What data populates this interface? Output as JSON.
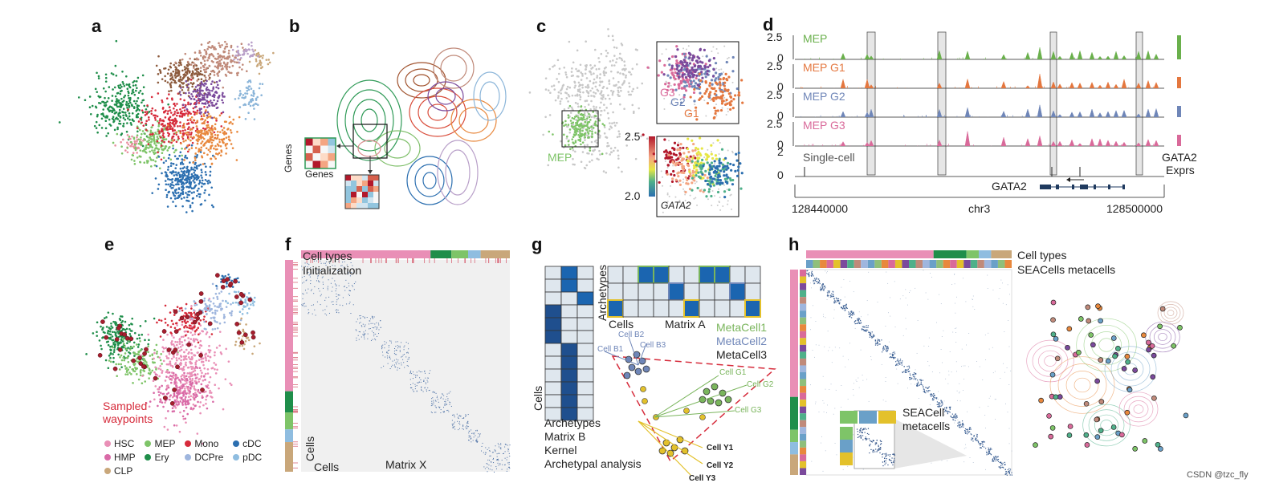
{
  "letters": {
    "a": "a",
    "b": "b",
    "c": "c",
    "d": "d",
    "e": "e",
    "f": "f",
    "g": "g",
    "h": "h"
  },
  "panel_b": {
    "genes_y": "Genes",
    "genes_x": "Genes"
  },
  "panel_c": {
    "mep": "MEP",
    "g3": "G3",
    "g2": "G2",
    "g1": "G1",
    "scale_max": "2.5",
    "scale_min": "2.0",
    "gene": "GATA2"
  },
  "panel_d": {
    "tracks": [
      {
        "label": "MEP",
        "color": "#6ab04c",
        "tmax": "2.5",
        "tmin": "0"
      },
      {
        "label": "MEP G1",
        "color": "#e4773f",
        "tmax": "2.5",
        "tmin": "0"
      },
      {
        "label": "MEP G2",
        "color": "#6f86b8",
        "tmax": "2.5",
        "tmin": "0"
      },
      {
        "label": "MEP G3",
        "color": "#d96a9a",
        "tmax": "2.5",
        "tmin": "0"
      }
    ],
    "single_label": "Single-cell",
    "single_max": "2",
    "single_min": "0",
    "expr_label1": "GATA2",
    "expr_label2": "Exprs",
    "gene": "GATA2",
    "x_start": "128440000",
    "x_chr": "chr3",
    "x_end": "128500000"
  },
  "panel_e": {
    "sampled1": "Sampled",
    "sampled2": "waypoints",
    "legend": [
      {
        "name": "HSC",
        "color": "#e98fb6"
      },
      {
        "name": "MEP",
        "color": "#7ec468"
      },
      {
        "name": "Mono",
        "color": "#d62b3b"
      },
      {
        "name": "cDC",
        "color": "#2c6fb0"
      },
      {
        "name": "HMP",
        "color": "#d96aa7"
      },
      {
        "name": "Ery",
        "color": "#1f8e4a"
      },
      {
        "name": "DCPre",
        "color": "#9fb6de"
      },
      {
        "name": "pDC",
        "color": "#8fbde0"
      },
      {
        "name": "CLP",
        "color": "#c9a77a"
      }
    ]
  },
  "panel_f": {
    "cell_types": "Cell types",
    "init": "Initialization",
    "cells_v": "Cells",
    "cells_h": "Cells",
    "matrix": "Matrix X"
  },
  "panel_g": {
    "archetypes_v": "Archetypes",
    "cells_h": "Cells",
    "matrix_a": "Matrix A",
    "meta1": "MetaCell1",
    "meta2": "MetaCell2",
    "meta3": "MetaCell3",
    "meta1_color": "#7ab55c",
    "meta2_color": "#6f86b8",
    "meta3_color": "#222222",
    "cells_v": "Cells",
    "caption": [
      "Archetypes",
      "Matrix B",
      "Kernel",
      "Archetypal analysis"
    ],
    "cb": [
      "Cell B1",
      "Cell B2",
      "Cell B3"
    ],
    "cg": [
      "Cell G1",
      "Cell G2",
      "Cell G3"
    ],
    "cy": [
      "Cell Y1",
      "Cell Y2",
      "Cell Y3"
    ]
  },
  "panel_h": {
    "cell_types": "Cell types",
    "seacells": "SEACells metacells",
    "seacell1": "SEACell",
    "seacell2": "metacells"
  },
  "watermark": "CSDN @tzc_fly"
}
